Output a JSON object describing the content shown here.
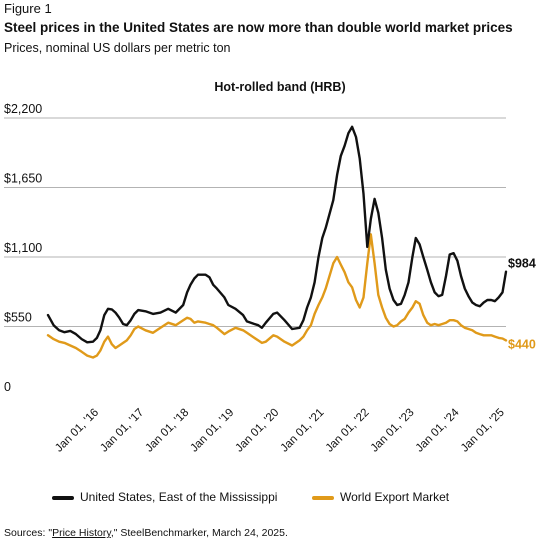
{
  "figure_label": "Figure 1",
  "title": "Steel prices in the United States are now more than double world market prices",
  "subtitle": "Prices, nominal US dollars per metric ton",
  "colors": {
    "us": "#111111",
    "world": "#e09a1a",
    "grid": "#9a9a9a"
  },
  "chart_data": {
    "type": "line",
    "title": "Hot-rolled band (HRB)",
    "ylabel": "",
    "xlabel": "",
    "ylim": [
      0,
      2200
    ],
    "yticks": [
      0,
      550,
      1100,
      1650,
      2200
    ],
    "ytick_labels": [
      "0",
      "$550",
      "$1,100",
      "$1,650",
      "$2,200"
    ],
    "grid": true,
    "legend_position": "bottom",
    "xticks": [
      "2016-01-01",
      "2017-01-01",
      "2018-01-01",
      "2019-01-01",
      "2020-01-01",
      "2021-01-01",
      "2022-01-01",
      "2023-01-01",
      "2024-01-01",
      "2025-01-01"
    ],
    "xtick_labels": [
      "Jan 01, '16",
      "Jan 01, '17",
      "Jan 01, '18",
      "Jan 01, '19",
      "Jan 01, '20",
      "Jan 01, '21",
      "Jan 01, '22",
      "Jan 01, '23",
      "Jan 01, '24",
      "Jan 01, '25"
    ],
    "series": [
      {
        "name": "United States, East of the Mississippi",
        "end_label": "$984",
        "points": [
          [
            "2015-01-01",
            640
          ],
          [
            "2015-02-15",
            560
          ],
          [
            "2015-04-01",
            520
          ],
          [
            "2015-05-15",
            505
          ],
          [
            "2015-07-01",
            515
          ],
          [
            "2015-08-15",
            490
          ],
          [
            "2015-10-01",
            450
          ],
          [
            "2015-11-15",
            425
          ],
          [
            "2016-01-01",
            430
          ],
          [
            "2016-02-01",
            460
          ],
          [
            "2016-03-01",
            520
          ],
          [
            "2016-04-01",
            640
          ],
          [
            "2016-05-01",
            690
          ],
          [
            "2016-06-01",
            685
          ],
          [
            "2016-07-01",
            660
          ],
          [
            "2016-08-01",
            620
          ],
          [
            "2016-09-01",
            570
          ],
          [
            "2016-10-01",
            560
          ],
          [
            "2016-11-01",
            600
          ],
          [
            "2016-12-01",
            650
          ],
          [
            "2017-01-01",
            680
          ],
          [
            "2017-03-01",
            670
          ],
          [
            "2017-05-01",
            650
          ],
          [
            "2017-07-01",
            660
          ],
          [
            "2017-09-01",
            690
          ],
          [
            "2017-11-01",
            660
          ],
          [
            "2018-01-01",
            720
          ],
          [
            "2018-02-01",
            820
          ],
          [
            "2018-03-01",
            880
          ],
          [
            "2018-04-01",
            930
          ],
          [
            "2018-05-01",
            960
          ],
          [
            "2018-07-01",
            960
          ],
          [
            "2018-08-01",
            940
          ],
          [
            "2018-09-01",
            880
          ],
          [
            "2018-10-01",
            850
          ],
          [
            "2018-12-01",
            780
          ],
          [
            "2019-01-01",
            720
          ],
          [
            "2019-03-01",
            690
          ],
          [
            "2019-05-01",
            640
          ],
          [
            "2019-06-01",
            590
          ],
          [
            "2019-08-01",
            570
          ],
          [
            "2019-09-01",
            560
          ],
          [
            "2019-10-01",
            540
          ],
          [
            "2019-11-01",
            580
          ],
          [
            "2020-01-01",
            650
          ],
          [
            "2020-02-01",
            660
          ],
          [
            "2020-04-01",
            600
          ],
          [
            "2020-06-01",
            530
          ],
          [
            "2020-08-01",
            540
          ],
          [
            "2020-09-01",
            600
          ],
          [
            "2020-10-01",
            700
          ],
          [
            "2020-11-01",
            780
          ],
          [
            "2020-12-01",
            900
          ],
          [
            "2021-01-01",
            1100
          ],
          [
            "2021-02-01",
            1250
          ],
          [
            "2021-03-01",
            1330
          ],
          [
            "2021-05-01",
            1550
          ],
          [
            "2021-06-01",
            1750
          ],
          [
            "2021-07-01",
            1900
          ],
          [
            "2021-08-01",
            1980
          ],
          [
            "2021-09-01",
            2080
          ],
          [
            "2021-10-01",
            2130
          ],
          [
            "2021-11-01",
            2050
          ],
          [
            "2021-12-01",
            1880
          ],
          [
            "2022-01-01",
            1600
          ],
          [
            "2022-02-01",
            1180
          ],
          [
            "2022-03-01",
            1400
          ],
          [
            "2022-04-01",
            1560
          ],
          [
            "2022-05-01",
            1450
          ],
          [
            "2022-06-01",
            1250
          ],
          [
            "2022-07-01",
            1000
          ],
          [
            "2022-08-01",
            850
          ],
          [
            "2022-09-01",
            760
          ],
          [
            "2022-10-01",
            720
          ],
          [
            "2022-11-01",
            730
          ],
          [
            "2022-12-01",
            800
          ],
          [
            "2023-01-01",
            900
          ],
          [
            "2023-02-01",
            1100
          ],
          [
            "2023-03-01",
            1250
          ],
          [
            "2023-04-01",
            1200
          ],
          [
            "2023-05-01",
            1100
          ],
          [
            "2023-06-01",
            1000
          ],
          [
            "2023-07-01",
            900
          ],
          [
            "2023-08-01",
            820
          ],
          [
            "2023-09-01",
            790
          ],
          [
            "2023-10-01",
            800
          ],
          [
            "2023-11-01",
            950
          ],
          [
            "2023-12-01",
            1120
          ],
          [
            "2024-01-01",
            1130
          ],
          [
            "2024-02-01",
            1070
          ],
          [
            "2024-03-01",
            950
          ],
          [
            "2024-04-01",
            850
          ],
          [
            "2024-05-01",
            790
          ],
          [
            "2024-06-01",
            740
          ],
          [
            "2024-07-01",
            720
          ],
          [
            "2024-08-01",
            710
          ],
          [
            "2024-09-01",
            740
          ],
          [
            "2024-10-01",
            760
          ],
          [
            "2024-11-01",
            760
          ],
          [
            "2024-12-01",
            750
          ],
          [
            "2025-01-01",
            780
          ],
          [
            "2025-02-01",
            820
          ],
          [
            "2025-03-01",
            984
          ]
        ]
      },
      {
        "name": "World Export Market",
        "end_label": "$440",
        "points": [
          [
            "2015-01-01",
            480
          ],
          [
            "2015-02-15",
            450
          ],
          [
            "2015-04-01",
            430
          ],
          [
            "2015-05-15",
            420
          ],
          [
            "2015-07-01",
            400
          ],
          [
            "2015-08-15",
            380
          ],
          [
            "2015-10-01",
            350
          ],
          [
            "2015-11-15",
            320
          ],
          [
            "2016-01-01",
            305
          ],
          [
            "2016-02-01",
            320
          ],
          [
            "2016-03-01",
            360
          ],
          [
            "2016-04-01",
            430
          ],
          [
            "2016-05-01",
            470
          ],
          [
            "2016-06-01",
            410
          ],
          [
            "2016-07-01",
            380
          ],
          [
            "2016-08-01",
            400
          ],
          [
            "2016-09-01",
            420
          ],
          [
            "2016-10-01",
            440
          ],
          [
            "2016-11-01",
            480
          ],
          [
            "2016-12-01",
            530
          ],
          [
            "2017-01-01",
            550
          ],
          [
            "2017-03-01",
            520
          ],
          [
            "2017-05-01",
            500
          ],
          [
            "2017-07-01",
            540
          ],
          [
            "2017-09-01",
            580
          ],
          [
            "2017-11-01",
            560
          ],
          [
            "2018-01-01",
            600
          ],
          [
            "2018-02-01",
            620
          ],
          [
            "2018-03-01",
            610
          ],
          [
            "2018-04-01",
            580
          ],
          [
            "2018-05-01",
            590
          ],
          [
            "2018-07-01",
            580
          ],
          [
            "2018-08-01",
            570
          ],
          [
            "2018-09-01",
            560
          ],
          [
            "2018-10-01",
            540
          ],
          [
            "2018-12-01",
            490
          ],
          [
            "2019-01-01",
            510
          ],
          [
            "2019-03-01",
            540
          ],
          [
            "2019-05-01",
            520
          ],
          [
            "2019-06-01",
            500
          ],
          [
            "2019-08-01",
            460
          ],
          [
            "2019-09-01",
            440
          ],
          [
            "2019-10-01",
            420
          ],
          [
            "2019-11-01",
            430
          ],
          [
            "2020-01-01",
            480
          ],
          [
            "2020-02-01",
            470
          ],
          [
            "2020-04-01",
            430
          ],
          [
            "2020-06-01",
            400
          ],
          [
            "2020-08-01",
            440
          ],
          [
            "2020-09-01",
            470
          ],
          [
            "2020-10-01",
            520
          ],
          [
            "2020-11-01",
            560
          ],
          [
            "2020-12-01",
            650
          ],
          [
            "2021-01-01",
            720
          ],
          [
            "2021-02-01",
            780
          ],
          [
            "2021-03-01",
            850
          ],
          [
            "2021-05-01",
            1050
          ],
          [
            "2021-06-01",
            1100
          ],
          [
            "2021-07-01",
            1040
          ],
          [
            "2021-08-01",
            980
          ],
          [
            "2021-09-01",
            900
          ],
          [
            "2021-10-01",
            860
          ],
          [
            "2021-11-01",
            760
          ],
          [
            "2021-12-01",
            700
          ],
          [
            "2022-01-01",
            780
          ],
          [
            "2022-02-01",
            1050
          ],
          [
            "2022-03-01",
            1280
          ],
          [
            "2022-04-01",
            1050
          ],
          [
            "2022-05-01",
            800
          ],
          [
            "2022-06-01",
            700
          ],
          [
            "2022-07-01",
            620
          ],
          [
            "2022-08-01",
            570
          ],
          [
            "2022-09-01",
            550
          ],
          [
            "2022-10-01",
            560
          ],
          [
            "2022-11-01",
            590
          ],
          [
            "2022-12-01",
            610
          ],
          [
            "2023-01-01",
            660
          ],
          [
            "2023-02-01",
            700
          ],
          [
            "2023-03-01",
            750
          ],
          [
            "2023-04-01",
            730
          ],
          [
            "2023-05-01",
            640
          ],
          [
            "2023-06-01",
            580
          ],
          [
            "2023-07-01",
            560
          ],
          [
            "2023-08-01",
            570
          ],
          [
            "2023-09-01",
            560
          ],
          [
            "2023-10-01",
            570
          ],
          [
            "2023-11-01",
            580
          ],
          [
            "2023-12-01",
            600
          ],
          [
            "2024-01-01",
            600
          ],
          [
            "2024-02-01",
            590
          ],
          [
            "2024-03-01",
            560
          ],
          [
            "2024-04-01",
            540
          ],
          [
            "2024-05-01",
            530
          ],
          [
            "2024-06-01",
            520
          ],
          [
            "2024-07-01",
            500
          ],
          [
            "2024-08-01",
            490
          ],
          [
            "2024-09-01",
            480
          ],
          [
            "2024-10-01",
            480
          ],
          [
            "2024-11-01",
            480
          ],
          [
            "2024-12-01",
            470
          ],
          [
            "2025-01-01",
            460
          ],
          [
            "2025-02-01",
            455
          ],
          [
            "2025-03-01",
            440
          ]
        ]
      }
    ]
  },
  "legend": {
    "us": "United States, East of the Mississippi",
    "world": "World Export Market"
  },
  "sources": {
    "prefix": "Sources: \"",
    "link": "Price History",
    "suffix": ",\" SteelBenchmarker, March 24, 2025."
  }
}
